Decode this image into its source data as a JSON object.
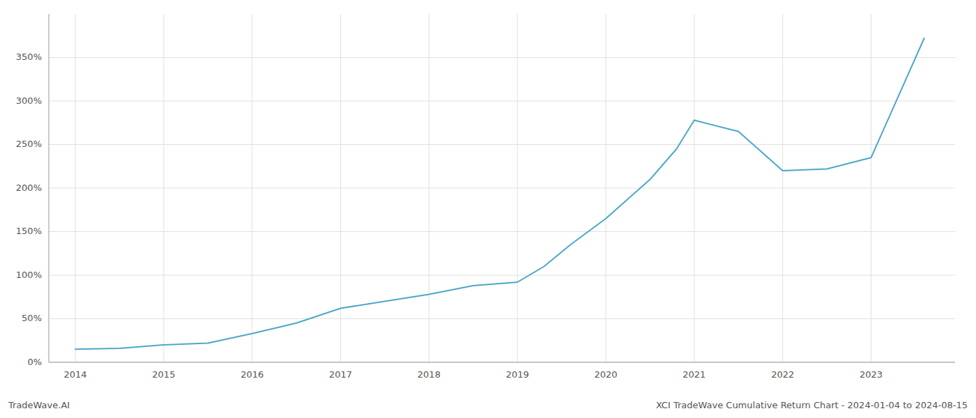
{
  "chart_data": {
    "type": "line",
    "x": [
      2014.0,
      2014.5,
      2015.0,
      2015.5,
      2016.0,
      2016.5,
      2017.0,
      2017.5,
      2018.0,
      2018.5,
      2019.0,
      2019.3,
      2019.6,
      2020.0,
      2020.5,
      2020.8,
      2021.0,
      2021.5,
      2022.0,
      2022.5,
      2023.0,
      2023.6
    ],
    "values": [
      15,
      16,
      20,
      22,
      33,
      45,
      62,
      70,
      78,
      88,
      92,
      110,
      135,
      165,
      210,
      245,
      278,
      265,
      220,
      222,
      235,
      372
    ],
    "color": "#4da6c8",
    "xlim": [
      2013.7,
      2023.95
    ],
    "ylim": [
      0,
      400
    ],
    "xticks": [
      2014,
      2015,
      2016,
      2017,
      2018,
      2019,
      2020,
      2021,
      2022,
      2023
    ],
    "yticks": [
      {
        "value": 0,
        "label": "0%"
      },
      {
        "value": 50,
        "label": "50%"
      },
      {
        "value": 100,
        "label": "100%"
      },
      {
        "value": 150,
        "label": "150%"
      },
      {
        "value": 200,
        "label": "200%"
      },
      {
        "value": 250,
        "label": "250%"
      },
      {
        "value": 300,
        "label": "300%"
      },
      {
        "value": 350,
        "label": "350%"
      }
    ],
    "grid": true,
    "annotations": [
      "TradeWave.AI",
      "XCI TradeWave Cumulative Return Chart - 2024-01-04 to 2024-08-15"
    ]
  }
}
